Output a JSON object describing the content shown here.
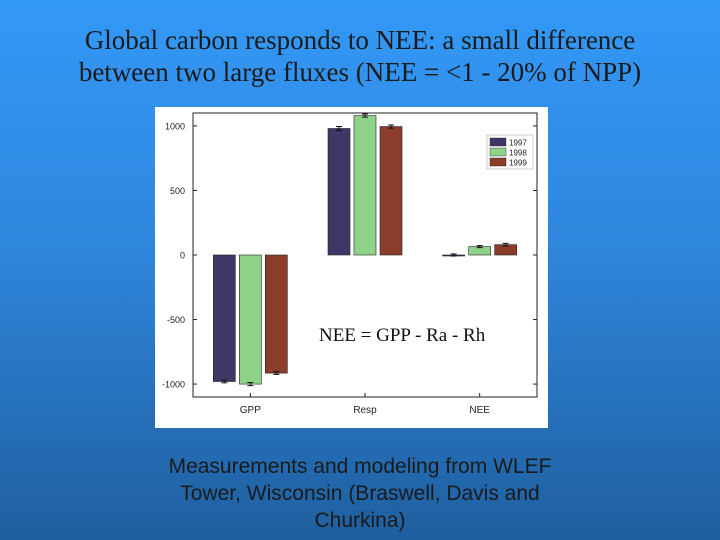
{
  "title_line1": "Global carbon responds to NEE: a small difference",
  "title_line2": "between two large fluxes (NEE = <1 - 20% of NPP)",
  "equation": "NEE = GPP - Ra - Rh",
  "caption_lines": [
    "Measurements and modeling from WLEF",
    "Tower, Wisconsin (Braswell, Davis and",
    "Churkina)"
  ],
  "chart_data": {
    "type": "bar",
    "title": "",
    "xlabel": "",
    "ylabel": "",
    "categories": [
      "GPP",
      "Resp",
      "NEE"
    ],
    "series": [
      {
        "name": "1997",
        "color": "#3f3866",
        "values": [
          -980,
          980,
          0
        ],
        "errors": [
          10,
          15,
          8
        ]
      },
      {
        "name": "1998",
        "color": "#8fd38a",
        "values": [
          -1000,
          1080,
          65
        ],
        "errors": [
          12,
          12,
          8
        ]
      },
      {
        "name": "1999",
        "color": "#8b3c2b",
        "values": [
          -915,
          995,
          80
        ],
        "errors": [
          10,
          12,
          10
        ]
      }
    ],
    "ylim": [
      -1100,
      1100
    ],
    "yticks": [
      -1000,
      -500,
      0,
      500,
      1000
    ],
    "ytick_labels": [
      "-1000",
      "-500",
      "0",
      "500",
      "1000"
    ],
    "legend_position": "top-right",
    "grid": false
  }
}
